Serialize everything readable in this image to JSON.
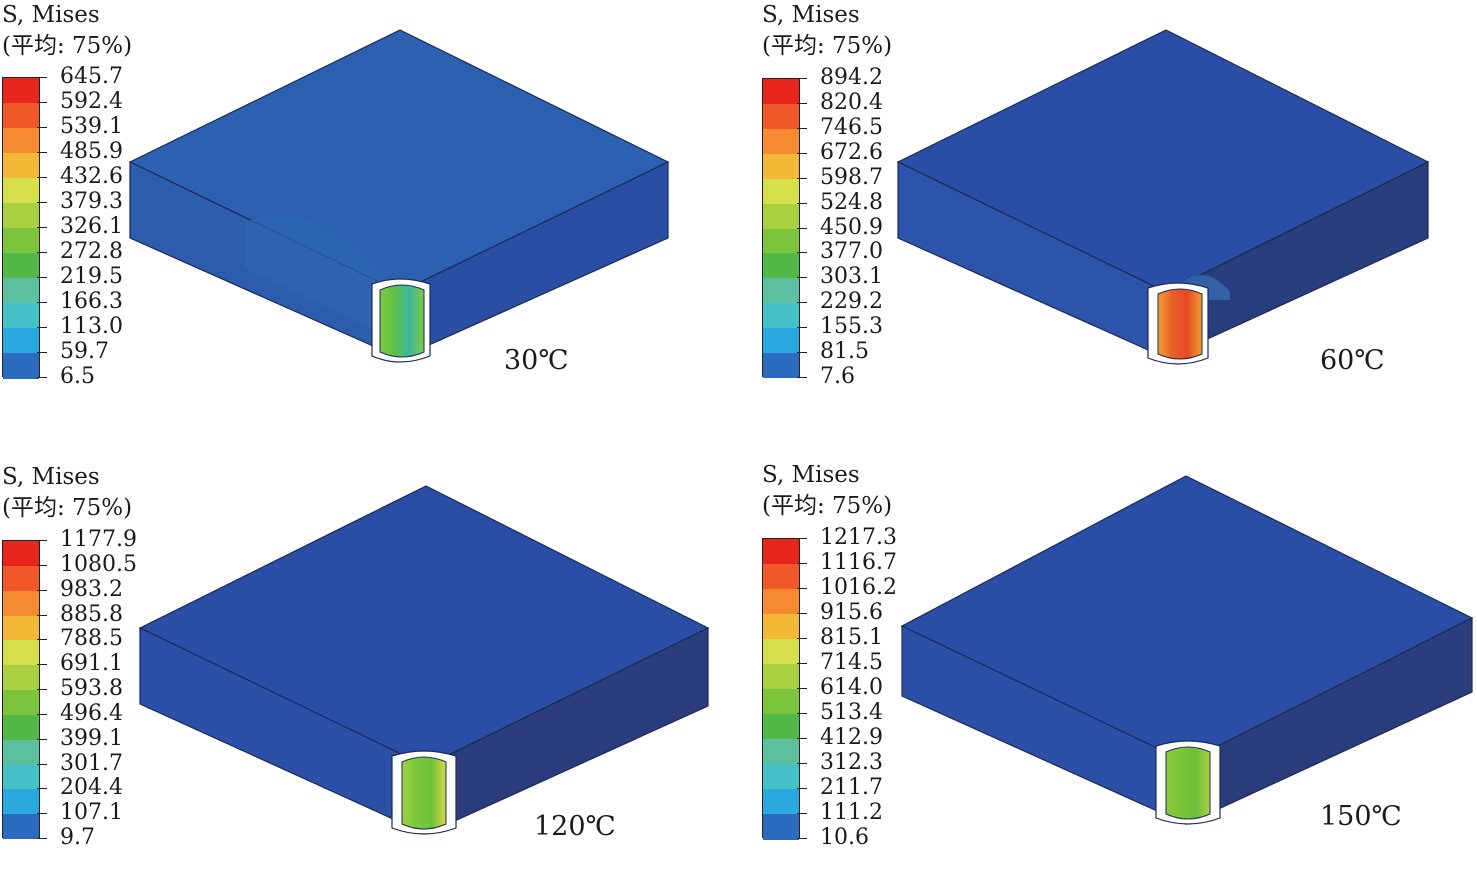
{
  "panels": [
    {
      "id": "p30",
      "legend_title": "S, Mises",
      "legend_subtitle": "(平均: 75%)",
      "legend_values": [
        "645.7",
        "592.4",
        "539.1",
        "485.9",
        "432.6",
        "379.3",
        "326.1",
        "272.8",
        "219.5",
        "166.3",
        "113.0",
        "59.7",
        "6.5"
      ],
      "temperature_label": "30℃",
      "pin_colors": [
        "#7ccc3a",
        "#5fbf4a",
        "#3cb8a0",
        "#7ccc3a"
      ]
    },
    {
      "id": "p60",
      "legend_title": "S, Mises",
      "legend_subtitle": "(平均: 75%)",
      "legend_values": [
        "894.2",
        "820.4",
        "746.5",
        "672.6",
        "598.7",
        "524.8",
        "450.9",
        "377.0",
        "303.1",
        "229.2",
        "155.3",
        "81.5",
        "7.6"
      ],
      "temperature_label": "60℃",
      "pin_colors": [
        "#f0a030",
        "#e8602a",
        "#e84a24",
        "#f0a030"
      ]
    },
    {
      "id": "p120",
      "legend_title": "S, Mises",
      "legend_subtitle": "(平均: 75%)",
      "legend_values": [
        "1177.9",
        "1080.5",
        "983.2",
        "885.8",
        "788.5",
        "691.1",
        "593.8",
        "496.4",
        "399.1",
        "301.7",
        "204.4",
        "107.1",
        "9.7"
      ],
      "temperature_label": "120℃",
      "pin_colors": [
        "#9fd040",
        "#7cc83a",
        "#6cc23a",
        "#d8d840"
      ]
    },
    {
      "id": "p150",
      "legend_title": "S, Mises",
      "legend_subtitle": "(平均: 75%)",
      "legend_values": [
        "1217.3",
        "1116.7",
        "1016.2",
        "915.6",
        "815.1",
        "714.5",
        "614.0",
        "513.4",
        "412.9",
        "312.3",
        "211.7",
        "111.2",
        "10.6"
      ],
      "temperature_label": "150℃",
      "pin_colors": [
        "#8cc83c",
        "#7cc63a",
        "#6cbe3a",
        "#a8d23e"
      ]
    }
  ],
  "colors": {
    "scale": [
      "#e8261e",
      "#f0582a",
      "#f58a30",
      "#f5b93a",
      "#d6e04a",
      "#a8d040",
      "#7cc43c",
      "#52b848",
      "#5cc0a0",
      "#45c2c8",
      "#2aa8e0",
      "#2c6cc0",
      "#2a48a8"
    ],
    "top_face": [
      "#2c60b0",
      "#2a4ea6",
      "#2a4ea6",
      "#2a4ea6"
    ],
    "front_face": [
      "#2c5cac",
      "#2c54aa",
      "#2c50a8",
      "#2c50a8"
    ],
    "side_face": [
      "#2a4ea4",
      "#283e7c",
      "#2b3c7c",
      "#2b3c7c"
    ]
  }
}
